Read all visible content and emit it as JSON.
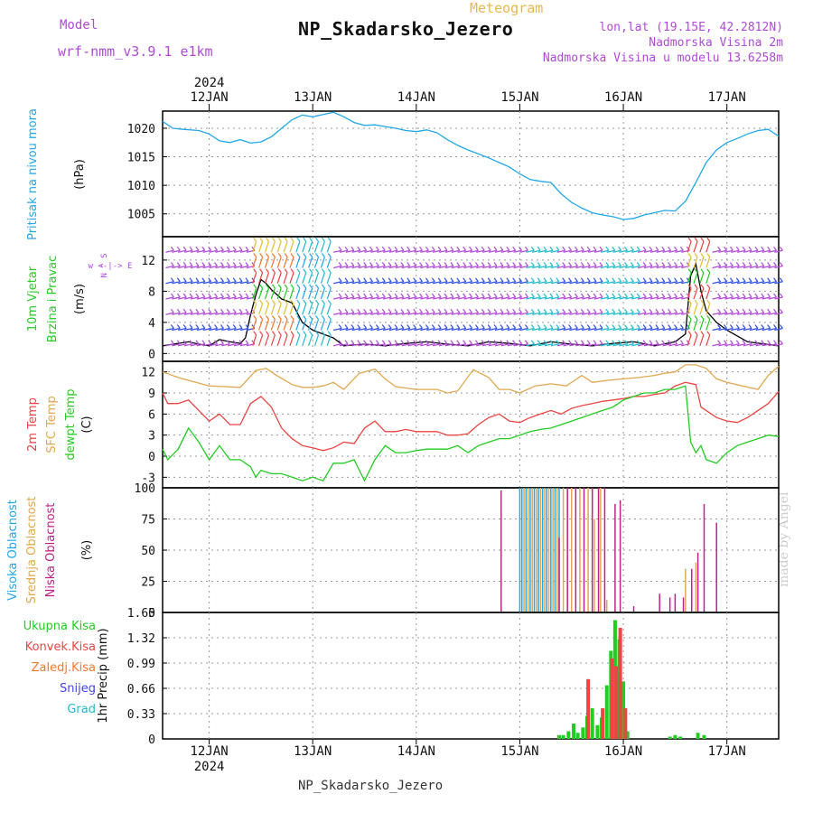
{
  "header": {
    "subtitle": "Meteogram",
    "title": "NP_Skadarsko_Jezero",
    "model_label": "Model",
    "model_name": "wrf-nmm_v3.9.1 e1km",
    "lonlat": "lon,lat (19.15E, 42.2812N)",
    "alt_2m": "Nadmorska Visina 2m",
    "alt_model": "Nadmorska Visina u modelu 13.6258m"
  },
  "footer": "NP_Skadarsko_Jezero",
  "credit": "made by Angel",
  "colors": {
    "pressure": "#20a8e8",
    "temp": "#ee4444",
    "sfc": "#e0a850",
    "dew": "#22cc22",
    "wind_label": "#22cc22",
    "wind_label2": "#22cc22",
    "high": "#20a8e8",
    "mid": "#e0a850",
    "low": "#c0208a",
    "total": "#22cc22",
    "conv": "#ee4444",
    "frozen": "#f07830",
    "snow": "#4444ee",
    "hail": "#22bbcc",
    "purple": "#b04ad8"
  },
  "chart_data": {
    "type": "line",
    "time_axis": {
      "year": "2024",
      "ticks": [
        "12JAN",
        "13JAN",
        "14JAN",
        "15JAN",
        "16JAN",
        "17JAN"
      ],
      "day_range": [
        11.55,
        17.5
      ]
    },
    "panels": [
      {
        "id": "pressure",
        "ylabel_title": "Pritisak na nivou mora",
        "ylabel_unit": "(hPa)",
        "yticks": [
          "1020",
          "1015",
          "1010",
          "1005"
        ],
        "ylim": [
          1001,
          1023
        ],
        "series": [
          {
            "color_key": "pressure",
            "x": [
              11.55,
              11.65,
              11.75,
              11.9,
              12.0,
              12.1,
              12.2,
              12.3,
              12.4,
              12.5,
              12.6,
              12.7,
              12.8,
              12.9,
              13.0,
              13.1,
              13.2,
              13.3,
              13.4,
              13.5,
              13.6,
              13.7,
              13.8,
              13.9,
              14.0,
              14.1,
              14.2,
              14.3,
              14.4,
              14.5,
              14.6,
              14.7,
              14.8,
              14.9,
              15.0,
              15.1,
              15.2,
              15.3,
              15.4,
              15.5,
              15.6,
              15.7,
              15.8,
              15.9,
              16.0,
              16.1,
              16.2,
              16.3,
              16.4,
              16.5,
              16.6,
              16.7,
              16.8,
              16.9,
              17.0,
              17.1,
              17.2,
              17.3,
              17.4,
              17.5
            ],
            "y": [
              1021.2,
              1020.0,
              1019.8,
              1019.6,
              1019.0,
              1017.8,
              1017.5,
              1018.0,
              1017.4,
              1017.6,
              1018.5,
              1020.0,
              1021.5,
              1022.3,
              1022.0,
              1022.4,
              1022.8,
              1022.0,
              1021.0,
              1020.5,
              1020.6,
              1020.3,
              1020.0,
              1019.6,
              1019.4,
              1019.7,
              1019.2,
              1018.0,
              1017.0,
              1016.2,
              1015.5,
              1014.8,
              1014.0,
              1013.2,
              1012.0,
              1011.0,
              1010.7,
              1010.5,
              1008.5,
              1007.0,
              1006.0,
              1005.2,
              1004.8,
              1004.5,
              1004.0,
              1004.2,
              1004.8,
              1005.2,
              1005.6,
              1005.5,
              1007.2,
              1010.5,
              1014.0,
              1016.2,
              1017.5,
              1018.2,
              1019.0,
              1019.6,
              1019.8,
              1018.6
            ]
          }
        ]
      },
      {
        "id": "wind",
        "ylabel_title": "10m Vjetar",
        "ylabel_title2": "Brzina i Pravac",
        "ylabel_unit": "(m/s)",
        "compass": "w <-|-> E",
        "compass_ns": "N ^ S",
        "yticks": [
          "12",
          "8",
          "4",
          "0"
        ],
        "ylim": [
          -1,
          15
        ],
        "series": [
          {
            "color_key": "total",
            "name": "speed",
            "x": [
              11.55,
              11.7,
              11.8,
              11.9,
              12.0,
              12.1,
              12.2,
              12.3,
              12.35,
              12.4,
              12.45,
              12.5,
              12.55,
              12.6,
              12.7,
              12.8,
              12.9,
              13.0,
              13.1,
              13.2,
              13.3,
              13.5,
              13.7,
              13.9,
              14.1,
              14.3,
              14.5,
              14.7,
              14.9,
              15.1,
              15.3,
              15.5,
              15.7,
              15.9,
              16.1,
              16.3,
              16.5,
              16.6,
              16.65,
              16.7,
              16.75,
              16.8,
              16.9,
              17.0,
              17.2,
              17.5
            ],
            "y": [
              1.0,
              1.3,
              1.5,
              1.2,
              1.0,
              1.8,
              1.5,
              1.3,
              2.0,
              5.0,
              7.5,
              9.5,
              9.0,
              8.2,
              7.0,
              6.5,
              4.0,
              3.0,
              2.5,
              2.0,
              1.0,
              1.2,
              1.0,
              1.3,
              1.5,
              1.2,
              1.0,
              1.5,
              1.3,
              1.0,
              1.5,
              1.2,
              1.0,
              1.3,
              1.5,
              1.0,
              1.5,
              2.5,
              10.0,
              11.5,
              8.0,
              5.5,
              4.0,
              3.0,
              1.5,
              1.0
            ]
          }
        ]
      },
      {
        "id": "temperature",
        "ylabel_series": [
          "2m Temp",
          "SFC Temp",
          "dewpt Temp"
        ],
        "ylabel_unit": "(C)",
        "yticks": [
          "12",
          "9",
          "6",
          "3",
          "0",
          "-3"
        ],
        "ylim": [
          -4.5,
          13.5
        ],
        "series": [
          {
            "color_key": "sfc",
            "name": "SFC Temp",
            "x": [
              11.55,
              11.7,
              11.9,
              12.0,
              12.15,
              12.3,
              12.45,
              12.55,
              12.65,
              12.8,
              12.9,
              13.0,
              13.1,
              13.2,
              13.3,
              13.45,
              13.6,
              13.7,
              13.8,
              14.0,
              14.2,
              14.3,
              14.4,
              14.55,
              14.7,
              14.8,
              14.9,
              15.0,
              15.15,
              15.3,
              15.45,
              15.6,
              15.7,
              15.85,
              16.0,
              16.15,
              16.3,
              16.4,
              16.5,
              16.6,
              16.7,
              16.8,
              16.9,
              17.0,
              17.15,
              17.3,
              17.4,
              17.5
            ],
            "y": [
              12.0,
              11.2,
              10.4,
              10.0,
              9.9,
              9.8,
              12.2,
              12.5,
              11.5,
              10.2,
              9.8,
              9.8,
              10.0,
              10.5,
              9.5,
              11.8,
              12.4,
              11.0,
              9.9,
              9.5,
              9.5,
              9.0,
              9.3,
              12.3,
              11.2,
              9.5,
              9.5,
              9.0,
              10.0,
              10.3,
              10.0,
              11.5,
              10.5,
              10.8,
              11.0,
              11.2,
              11.5,
              11.8,
              12.0,
              13.0,
              13.0,
              12.5,
              11.0,
              10.5,
              10.0,
              9.5,
              11.5,
              12.8
            ]
          },
          {
            "color_key": "temp",
            "name": "2m Temp",
            "x": [
              11.55,
              11.6,
              11.7,
              11.8,
              11.9,
              12.0,
              12.1,
              12.2,
              12.3,
              12.4,
              12.5,
              12.6,
              12.7,
              12.8,
              12.9,
              13.0,
              13.1,
              13.2,
              13.3,
              13.4,
              13.5,
              13.6,
              13.7,
              13.8,
              13.9,
              14.0,
              14.1,
              14.2,
              14.3,
              14.4,
              14.5,
              14.6,
              14.7,
              14.8,
              14.9,
              15.0,
              15.1,
              15.2,
              15.3,
              15.4,
              15.5,
              15.6,
              15.7,
              15.8,
              15.9,
              16.0,
              16.1,
              16.2,
              16.3,
              16.4,
              16.5,
              16.6,
              16.7,
              16.75,
              16.8,
              16.9,
              17.0,
              17.1,
              17.2,
              17.3,
              17.4,
              17.5
            ],
            "y": [
              9.0,
              7.5,
              7.5,
              8.0,
              6.5,
              5.0,
              6.0,
              4.5,
              4.5,
              7.5,
              8.5,
              7.0,
              4.0,
              2.5,
              1.5,
              1.2,
              0.8,
              1.2,
              2.0,
              1.8,
              4.0,
              5.0,
              3.5,
              3.5,
              3.8,
              3.5,
              3.5,
              3.5,
              3.0,
              3.0,
              3.2,
              4.5,
              5.5,
              6.0,
              5.0,
              4.8,
              5.5,
              6.0,
              6.5,
              6.0,
              6.8,
              7.2,
              7.5,
              7.8,
              8.0,
              8.2,
              8.5,
              8.5,
              8.8,
              9.0,
              10.0,
              10.5,
              10.2,
              7.0,
              6.5,
              5.5,
              5.0,
              4.8,
              5.5,
              6.5,
              7.5,
              9.2
            ]
          },
          {
            "color_key": "dew",
            "name": "dewpt Temp",
            "x": [
              11.55,
              11.6,
              11.7,
              11.8,
              11.9,
              12.0,
              12.1,
              12.2,
              12.3,
              12.4,
              12.45,
              12.5,
              12.6,
              12.7,
              12.8,
              12.9,
              13.0,
              13.1,
              13.2,
              13.3,
              13.4,
              13.5,
              13.6,
              13.7,
              13.8,
              13.9,
              14.0,
              14.1,
              14.2,
              14.3,
              14.4,
              14.5,
              14.6,
              14.7,
              14.8,
              14.9,
              15.0,
              15.1,
              15.2,
              15.3,
              15.4,
              15.5,
              15.6,
              15.7,
              15.8,
              15.9,
              16.0,
              16.1,
              16.2,
              16.3,
              16.4,
              16.5,
              16.6,
              16.65,
              16.7,
              16.75,
              16.8,
              16.9,
              17.0,
              17.1,
              17.2,
              17.3,
              17.4,
              17.5
            ],
            "y": [
              1.0,
              -0.5,
              1.0,
              4.0,
              2.0,
              -0.5,
              1.5,
              -0.5,
              -0.5,
              -1.5,
              -3.0,
              -2.0,
              -2.5,
              -2.5,
              -3.0,
              -3.5,
              -3.0,
              -3.5,
              -1.0,
              -1.0,
              -0.5,
              -3.5,
              -0.5,
              1.5,
              0.5,
              0.5,
              0.8,
              1.0,
              1.0,
              1.0,
              1.5,
              0.5,
              1.5,
              2.0,
              2.5,
              2.5,
              3.0,
              3.5,
              3.8,
              4.0,
              4.5,
              5.0,
              5.5,
              6.0,
              6.5,
              7.0,
              8.0,
              8.5,
              9.0,
              9.0,
              9.5,
              9.5,
              10.0,
              2.0,
              0.5,
              1.5,
              -0.5,
              -1.0,
              0.5,
              1.5,
              2.0,
              2.5,
              3.0,
              2.8
            ]
          }
        ]
      },
      {
        "id": "cloud",
        "ylabel_series": [
          "Visoka Oblacnost",
          "Srednja Oblacnost",
          "Niska Oblacnost"
        ],
        "ylabel_unit": "(%)",
        "yticks": [
          "100",
          "75",
          "50",
          "25",
          "0"
        ],
        "ylim": [
          0,
          100
        ],
        "bars": [
          {
            "color_key": "high",
            "x": [
              15.0,
              15.02,
              15.06,
              15.1,
              15.14,
              15.18,
              15.22,
              15.26,
              15.3,
              15.34,
              15.38
            ],
            "y": [
              100,
              100,
              100,
              100,
              100,
              100,
              100,
              100,
              100,
              100,
              100
            ]
          },
          {
            "color_key": "mid",
            "x": [
              15.04,
              15.08,
              15.12,
              15.16,
              15.2,
              15.24,
              15.28,
              15.32,
              15.36,
              15.42,
              15.5,
              15.58,
              15.66,
              15.72,
              15.78,
              15.84,
              16.6,
              16.7
            ],
            "y": [
              100,
              100,
              100,
              100,
              100,
              100,
              100,
              100,
              100,
              100,
              100,
              100,
              100,
              75,
              100,
              10,
              35,
              40
            ]
          },
          {
            "color_key": "low",
            "x": [
              14.82,
              15.38,
              15.46,
              15.54,
              15.62,
              15.7,
              15.76,
              15.82,
              15.92,
              15.97,
              16.1,
              16.35,
              16.45,
              16.5,
              16.58,
              16.66,
              16.72,
              16.78,
              16.9
            ],
            "y": [
              98,
              60,
              100,
              100,
              100,
              100,
              100,
              100,
              87,
              90,
              5,
              15,
              12,
              15,
              12,
              35,
              48,
              87,
              72
            ]
          }
        ]
      },
      {
        "id": "precip",
        "legend": [
          "Ukupna Kisa",
          "Konvek.Kisa",
          "Zaledj.Kisa",
          "Snijeg",
          "Grad"
        ],
        "ylabel_unit": "1hr Precip (mm)",
        "yticks": [
          "1.65",
          "1.32",
          "0.99",
          "0.66",
          "0.33",
          "0"
        ],
        "ylim": [
          0,
          1.65
        ],
        "bars": [
          {
            "color_key": "total",
            "x": [
              15.38,
              15.42,
              15.47,
              15.52,
              15.56,
              15.61,
              15.65,
              15.7,
              15.75,
              15.79,
              15.84,
              15.88,
              15.92,
              15.96,
              16.0,
              16.04,
              16.45,
              16.5,
              16.55,
              16.72,
              16.78
            ],
            "y": [
              0.05,
              0.05,
              0.1,
              0.2,
              0.08,
              0.15,
              0.3,
              0.4,
              0.18,
              0.28,
              0.7,
              1.15,
              1.55,
              1.3,
              0.75,
              0.1,
              0.03,
              0.05,
              0.03,
              0.08,
              0.05
            ]
          },
          {
            "color_key": "conv",
            "x": [
              15.66,
              15.8,
              15.89,
              15.93,
              15.97,
              16.02
            ],
            "y": [
              0.78,
              0.4,
              1.05,
              0.95,
              1.45,
              0.4
            ]
          }
        ]
      }
    ]
  }
}
